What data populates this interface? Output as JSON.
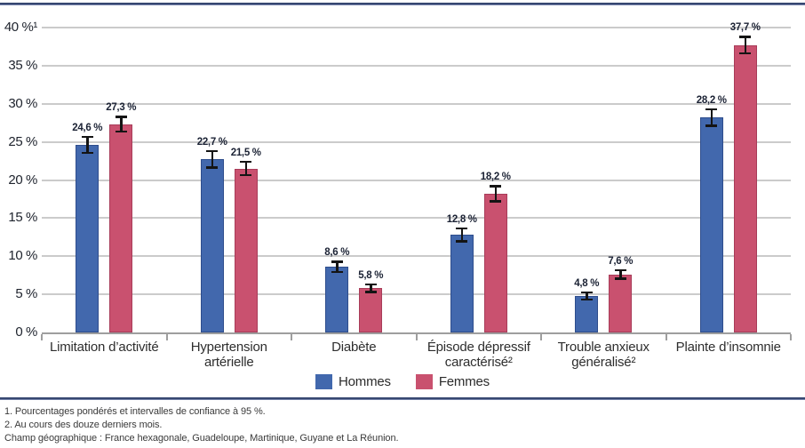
{
  "chart_data": {
    "type": "bar",
    "title": "",
    "categories": [
      "Limitation d’activité",
      "Hypertension artérielle",
      "Diabète",
      "Épisode dépressif caractérisé²",
      "Trouble anxieux généralisé²",
      "Plainte d’insomnie"
    ],
    "series": [
      {
        "name": "Hommes",
        "color": "#4268ad",
        "values": [
          24.6,
          22.7,
          8.6,
          12.8,
          4.8,
          28.2
        ],
        "ci_half_width": [
          1.1,
          1.1,
          0.7,
          0.9,
          0.5,
          1.1
        ],
        "labels": [
          "24,6 %",
          "22,7 %",
          "8,6 %",
          "12,8 %",
          "4,8 %",
          "28,2 %"
        ]
      },
      {
        "name": "Femmes",
        "color": "#c9516f",
        "values": [
          27.3,
          21.5,
          5.8,
          18.2,
          7.6,
          37.7
        ],
        "ci_half_width": [
          1.0,
          0.9,
          0.5,
          1.0,
          0.6,
          1.1
        ],
        "labels": [
          "27,3 %",
          "21,5 %",
          "5,8 %",
          "18,2 %",
          "7,6 %",
          "37,7 %"
        ]
      }
    ],
    "ylim": [
      0,
      40
    ],
    "ytick_step": 5,
    "ytick_labels": [
      "0 %",
      "5 %",
      "10 %",
      "15 %",
      "20 %",
      "25 %",
      "30 %",
      "35 %",
      "40 %¹"
    ],
    "grid": true,
    "legend_position": "bottom",
    "error_bars": "intervalles de confiance à 95 %",
    "unit": "%"
  },
  "footnotes": {
    "lines": [
      "1. Pourcentages pondérés et intervalles de confiance à 95 %.",
      "2. Au cours des douze derniers mois.",
      "Champ géographique : France hexagonale, Guadeloupe, Martinique, Guyane et La Réunion."
    ]
  },
  "colors": {
    "hommes": "#4268ad",
    "femmes": "#c9516f",
    "divider": "#34456f",
    "gridline": "#cbcbcb",
    "error_bar": "#141414"
  }
}
